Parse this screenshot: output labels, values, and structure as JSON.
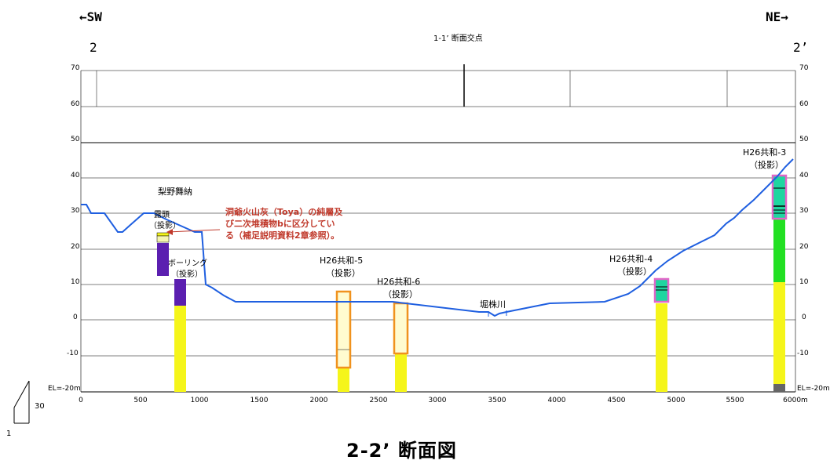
{
  "header": {
    "sw_label": "←SW",
    "ne_label": "NE→",
    "left_end": "2",
    "right_end": "2’",
    "intersection": "1-1’ 断面交点"
  },
  "figure_title": "2-2’ 断面図",
  "scale": {
    "vertical": "30",
    "horizontal": "1"
  },
  "y_axis": {
    "ticks": [
      70,
      60,
      50,
      40,
      30,
      20,
      10,
      0,
      -10
    ],
    "bottom_label": "EL=-20m"
  },
  "x_axis": {
    "ticks": [
      "0",
      "500",
      "1000",
      "1500",
      "2000",
      "2500",
      "3000",
      "3500",
      "4000",
      "4500",
      "5000",
      "5500",
      "6000m"
    ]
  },
  "labels": {
    "place1": "梨野舞納",
    "roadhead": "露頭",
    "roadhead_proj": "（投影）",
    "boring": "ボーリング",
    "boring_proj": "（投影）",
    "h26_5": "H26共和-5",
    "h26_5_proj": "（投影）",
    "h26_6": "H26共和-6",
    "h26_6_proj": "（投影）",
    "river": "堀株川",
    "h26_4": "H26共和-4",
    "h26_4_proj": "（投影）",
    "h26_3": "H26共和-3",
    "h26_3_proj": "（投影）"
  },
  "note": {
    "line1": "洞爺火山灰（Toya）の純層及",
    "line2": "び二次堆積物bに区分してい",
    "line3": "る（補足説明資料2章参照）。"
  },
  "colors": {
    "ground": "#1f5fe0",
    "note": "#c0392b",
    "yellow": "#f5f51a",
    "purple": "#5b1fb0",
    "green": "#22e022",
    "teal": "#1fd6a0",
    "orange": "#f0921e",
    "pink": "#e066c8",
    "paleyellow": "#fffbd0"
  }
}
